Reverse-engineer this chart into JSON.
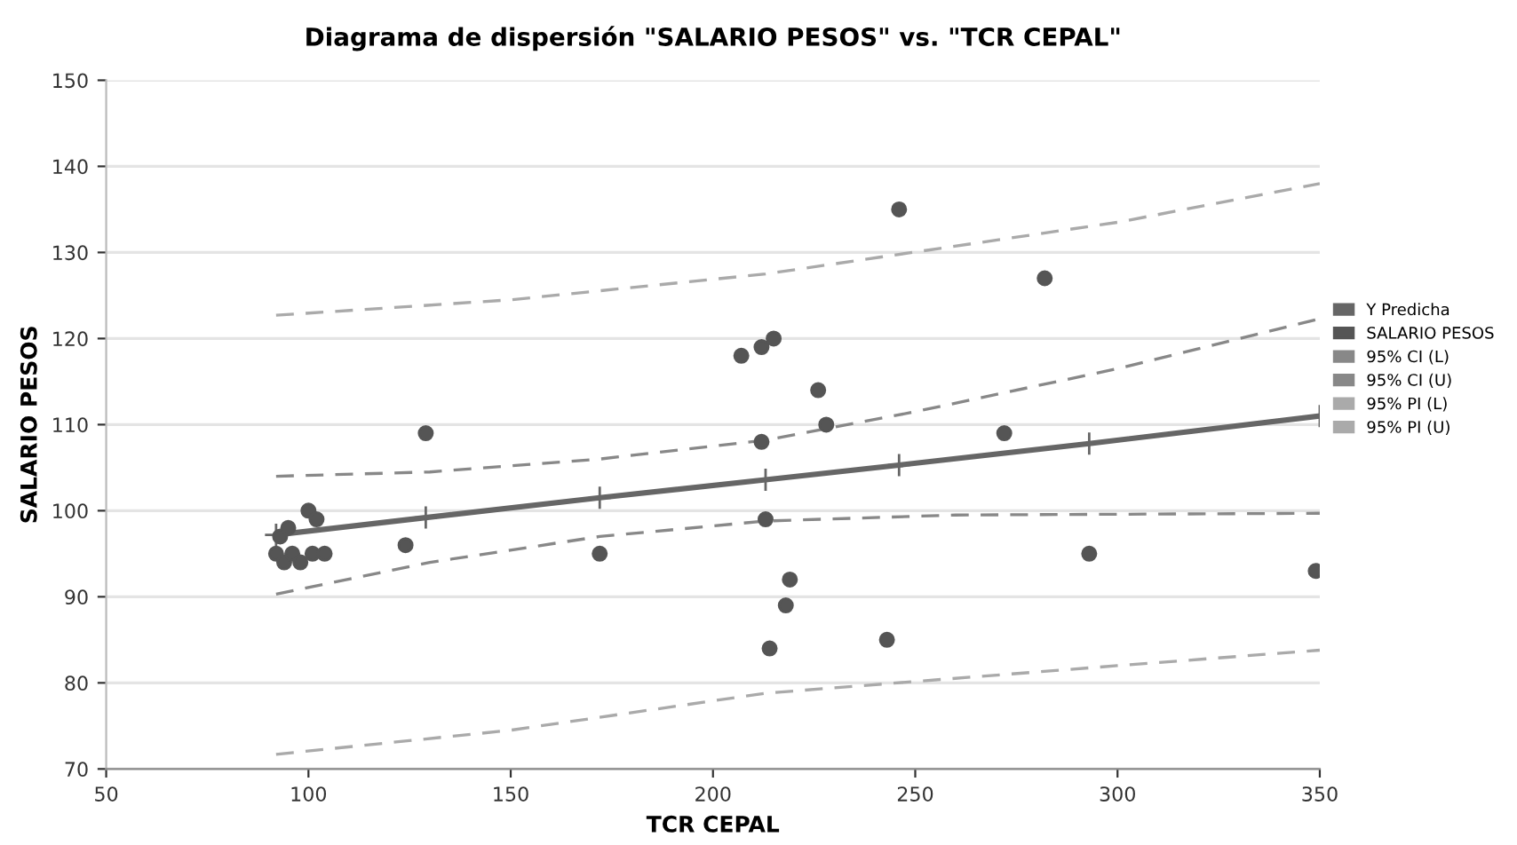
{
  "chart_data": {
    "type": "scatter",
    "title": "Diagrama de dispersión \"SALARIO PESOS\" vs. \"TCR CEPAL\"",
    "xlabel": "TCR CEPAL",
    "ylabel": "SALARIO PESOS",
    "xlim": [
      50,
      350
    ],
    "xticks": [
      50,
      100,
      150,
      200,
      250,
      300,
      350
    ],
    "ylim": [
      70,
      150
    ],
    "yticks": [
      70,
      80,
      90,
      100,
      110,
      120,
      130,
      140,
      150
    ],
    "grid": "y",
    "legend": "right",
    "series": [
      {
        "name": "Y Predicha",
        "type": "line",
        "color": "#666666",
        "marker": "cross",
        "line_style": "solid",
        "x": [
          92,
          129,
          172,
          213,
          246,
          293,
          350
        ],
        "values": [
          97.2,
          99.2,
          101.5,
          103.6,
          105.3,
          107.8,
          111
        ]
      },
      {
        "name": "SALARIO PESOS",
        "color": "#555555",
        "marker": "circle",
        "x": [
          92,
          94,
          96,
          98,
          93,
          95,
          100,
          102,
          101,
          104,
          124,
          129,
          172,
          207,
          212,
          215,
          212,
          213,
          214,
          219,
          218,
          226,
          228,
          243,
          246,
          272,
          282,
          293,
          349
        ],
        "values": [
          95,
          94,
          95,
          94,
          97,
          98,
          100,
          99,
          95,
          95,
          96,
          109,
          95,
          118,
          119,
          120,
          108,
          99,
          84,
          92,
          89,
          114,
          110,
          85,
          135,
          109,
          127,
          95,
          93
        ]
      },
      {
        "name": "95% CI (L)",
        "type": "line",
        "color": "#888888",
        "line_style": "dashed",
        "x": [
          92,
          130,
          172,
          213,
          260,
          350
        ],
        "values": [
          90.3,
          94,
          97,
          98.8,
          99.5,
          99.7
        ]
      },
      {
        "name": "95% CI (U)",
        "type": "line",
        "color": "#888888",
        "line_style": "dashed",
        "x": [
          92,
          130,
          172,
          213,
          250,
          300,
          350
        ],
        "values": [
          104,
          104.5,
          106,
          108.2,
          111.5,
          116.5,
          122.3
        ]
      },
      {
        "name": "95% PI (L)",
        "type": "line",
        "color": "#aaaaaa",
        "line_style": "dashed",
        "x": [
          92,
          150,
          213,
          300,
          350
        ],
        "values": [
          71.7,
          74.5,
          78.8,
          82,
          83.8
        ]
      },
      {
        "name": "95% PI (U)",
        "type": "line",
        "color": "#aaaaaa",
        "line_style": "dashed",
        "x": [
          92,
          150,
          213,
          300,
          350
        ],
        "values": [
          122.7,
          124.5,
          127.5,
          133.5,
          138
        ]
      }
    ]
  }
}
